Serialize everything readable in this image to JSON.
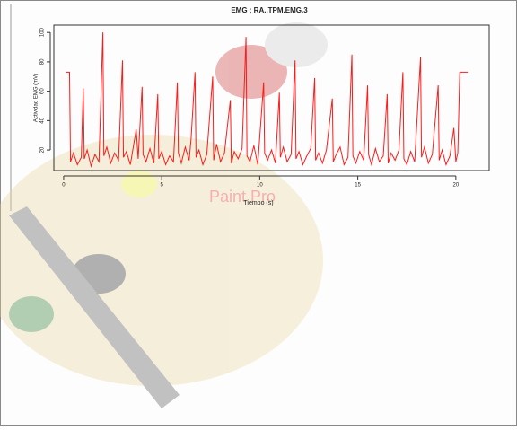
{
  "chart_data": {
    "type": "line",
    "title": "EMG ; RA..TPM.EMG.3",
    "x_label": "Tiempo (s)",
    "y_label": "Actividad EMG (mV)",
    "watermark": "Paint Pro",
    "xlim": [
      -0.5,
      21.7
    ],
    "ylim": [
      6,
      105
    ],
    "xticks": [
      0,
      5,
      10,
      15,
      20
    ],
    "yticks": [
      20,
      40,
      60,
      80,
      100
    ],
    "series": [
      {
        "color": "#ff1a1a",
        "x": [
          0.1,
          0.3,
          0.35,
          0.5,
          0.7,
          0.9,
          1.0,
          1.05,
          1.2,
          1.4,
          1.6,
          1.8,
          2.0,
          2.05,
          2.2,
          2.4,
          2.6,
          2.8,
          3.0,
          3.05,
          3.2,
          3.4,
          3.7,
          3.8,
          4.0,
          4.05,
          4.2,
          4.4,
          4.6,
          4.8,
          4.85,
          5.0,
          5.2,
          5.4,
          5.6,
          5.8,
          5.85,
          6.0,
          6.2,
          6.4,
          6.5,
          6.7,
          6.75,
          6.9,
          7.1,
          7.3,
          7.6,
          7.65,
          7.8,
          8.0,
          8.2,
          8.5,
          8.55,
          8.7,
          8.9,
          9.1,
          9.3,
          9.35,
          9.5,
          9.7,
          9.9,
          10.2,
          10.25,
          10.4,
          10.6,
          10.8,
          11.0,
          11.05,
          11.2,
          11.4,
          11.6,
          11.8,
          11.85,
          12.0,
          12.2,
          12.4,
          12.6,
          12.8,
          12.85,
          13.0,
          13.2,
          13.4,
          13.7,
          13.75,
          13.9,
          14.1,
          14.3,
          14.5,
          14.7,
          14.75,
          14.9,
          15.1,
          15.3,
          15.5,
          15.55,
          15.7,
          15.9,
          16.1,
          16.3,
          16.5,
          16.55,
          16.7,
          16.9,
          17.1,
          17.3,
          17.35,
          17.5,
          17.7,
          17.9,
          18.2,
          18.25,
          18.4,
          18.6,
          18.8,
          19.1,
          19.15,
          19.3,
          19.5,
          19.7,
          19.9,
          20.0,
          20.1,
          20.2,
          20.6
        ],
        "values": [
          73,
          73,
          12,
          18,
          10,
          15,
          62,
          14,
          20,
          9,
          17,
          12,
          100,
          16,
          22,
          11,
          18,
          13,
          81,
          15,
          19,
          10,
          34,
          14,
          63,
          17,
          12,
          21,
          11,
          58,
          14,
          19,
          10,
          16,
          12,
          66,
          18,
          11,
          22,
          13,
          28,
          73,
          15,
          20,
          10,
          17,
          70,
          13,
          24,
          12,
          18,
          54,
          11,
          19,
          14,
          21,
          97,
          16,
          12,
          23,
          10,
          66,
          18,
          13,
          20,
          11,
          59,
          15,
          22,
          12,
          17,
          81,
          14,
          19,
          10,
          16,
          21,
          69,
          13,
          18,
          11,
          20,
          55,
          12,
          17,
          22,
          10,
          15,
          85,
          16,
          11,
          19,
          13,
          64,
          17,
          10,
          21,
          12,
          16,
          58,
          11,
          18,
          13,
          20,
          73,
          14,
          10,
          19,
          12,
          83,
          15,
          22,
          11,
          17,
          64,
          13,
          20,
          10,
          16,
          35,
          12,
          18,
          73,
          73
        ]
      }
    ]
  }
}
